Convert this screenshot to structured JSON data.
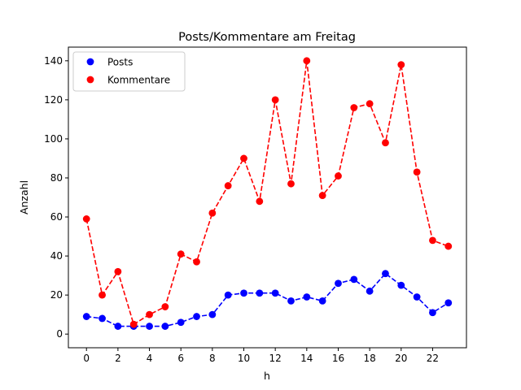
{
  "chart_data": {
    "type": "line",
    "title": "Posts/Kommentare am Freitag",
    "xlabel": "h",
    "ylabel": "Anzahl",
    "xlim": [
      -1.15,
      24.15
    ],
    "ylim": [
      -7,
      147
    ],
    "xticks": [
      0,
      2,
      4,
      6,
      8,
      10,
      12,
      14,
      16,
      18,
      20,
      22
    ],
    "yticks": [
      0,
      20,
      40,
      60,
      80,
      100,
      120,
      140
    ],
    "grid": false,
    "legend_position": "top-left",
    "x": [
      0,
      1,
      2,
      3,
      4,
      5,
      6,
      7,
      8,
      9,
      10,
      11,
      12,
      13,
      14,
      15,
      16,
      17,
      18,
      19,
      20,
      21,
      22,
      23
    ],
    "series": [
      {
        "name": "Posts",
        "color": "#0000ff",
        "linestyle": "dashed",
        "marker": "circle",
        "values": [
          9,
          8,
          4,
          4,
          4,
          4,
          6,
          9,
          10,
          20,
          21,
          21,
          21,
          17,
          19,
          17,
          26,
          28,
          22,
          31,
          25,
          19,
          11,
          16
        ]
      },
      {
        "name": "Kommentare",
        "color": "#ff0000",
        "linestyle": "dashed",
        "marker": "circle",
        "values": [
          59,
          20,
          32,
          5,
          10,
          14,
          41,
          37,
          62,
          76,
          90,
          68,
          120,
          77,
          140,
          71,
          81,
          116,
          118,
          98,
          138,
          83,
          48,
          45
        ]
      }
    ]
  }
}
